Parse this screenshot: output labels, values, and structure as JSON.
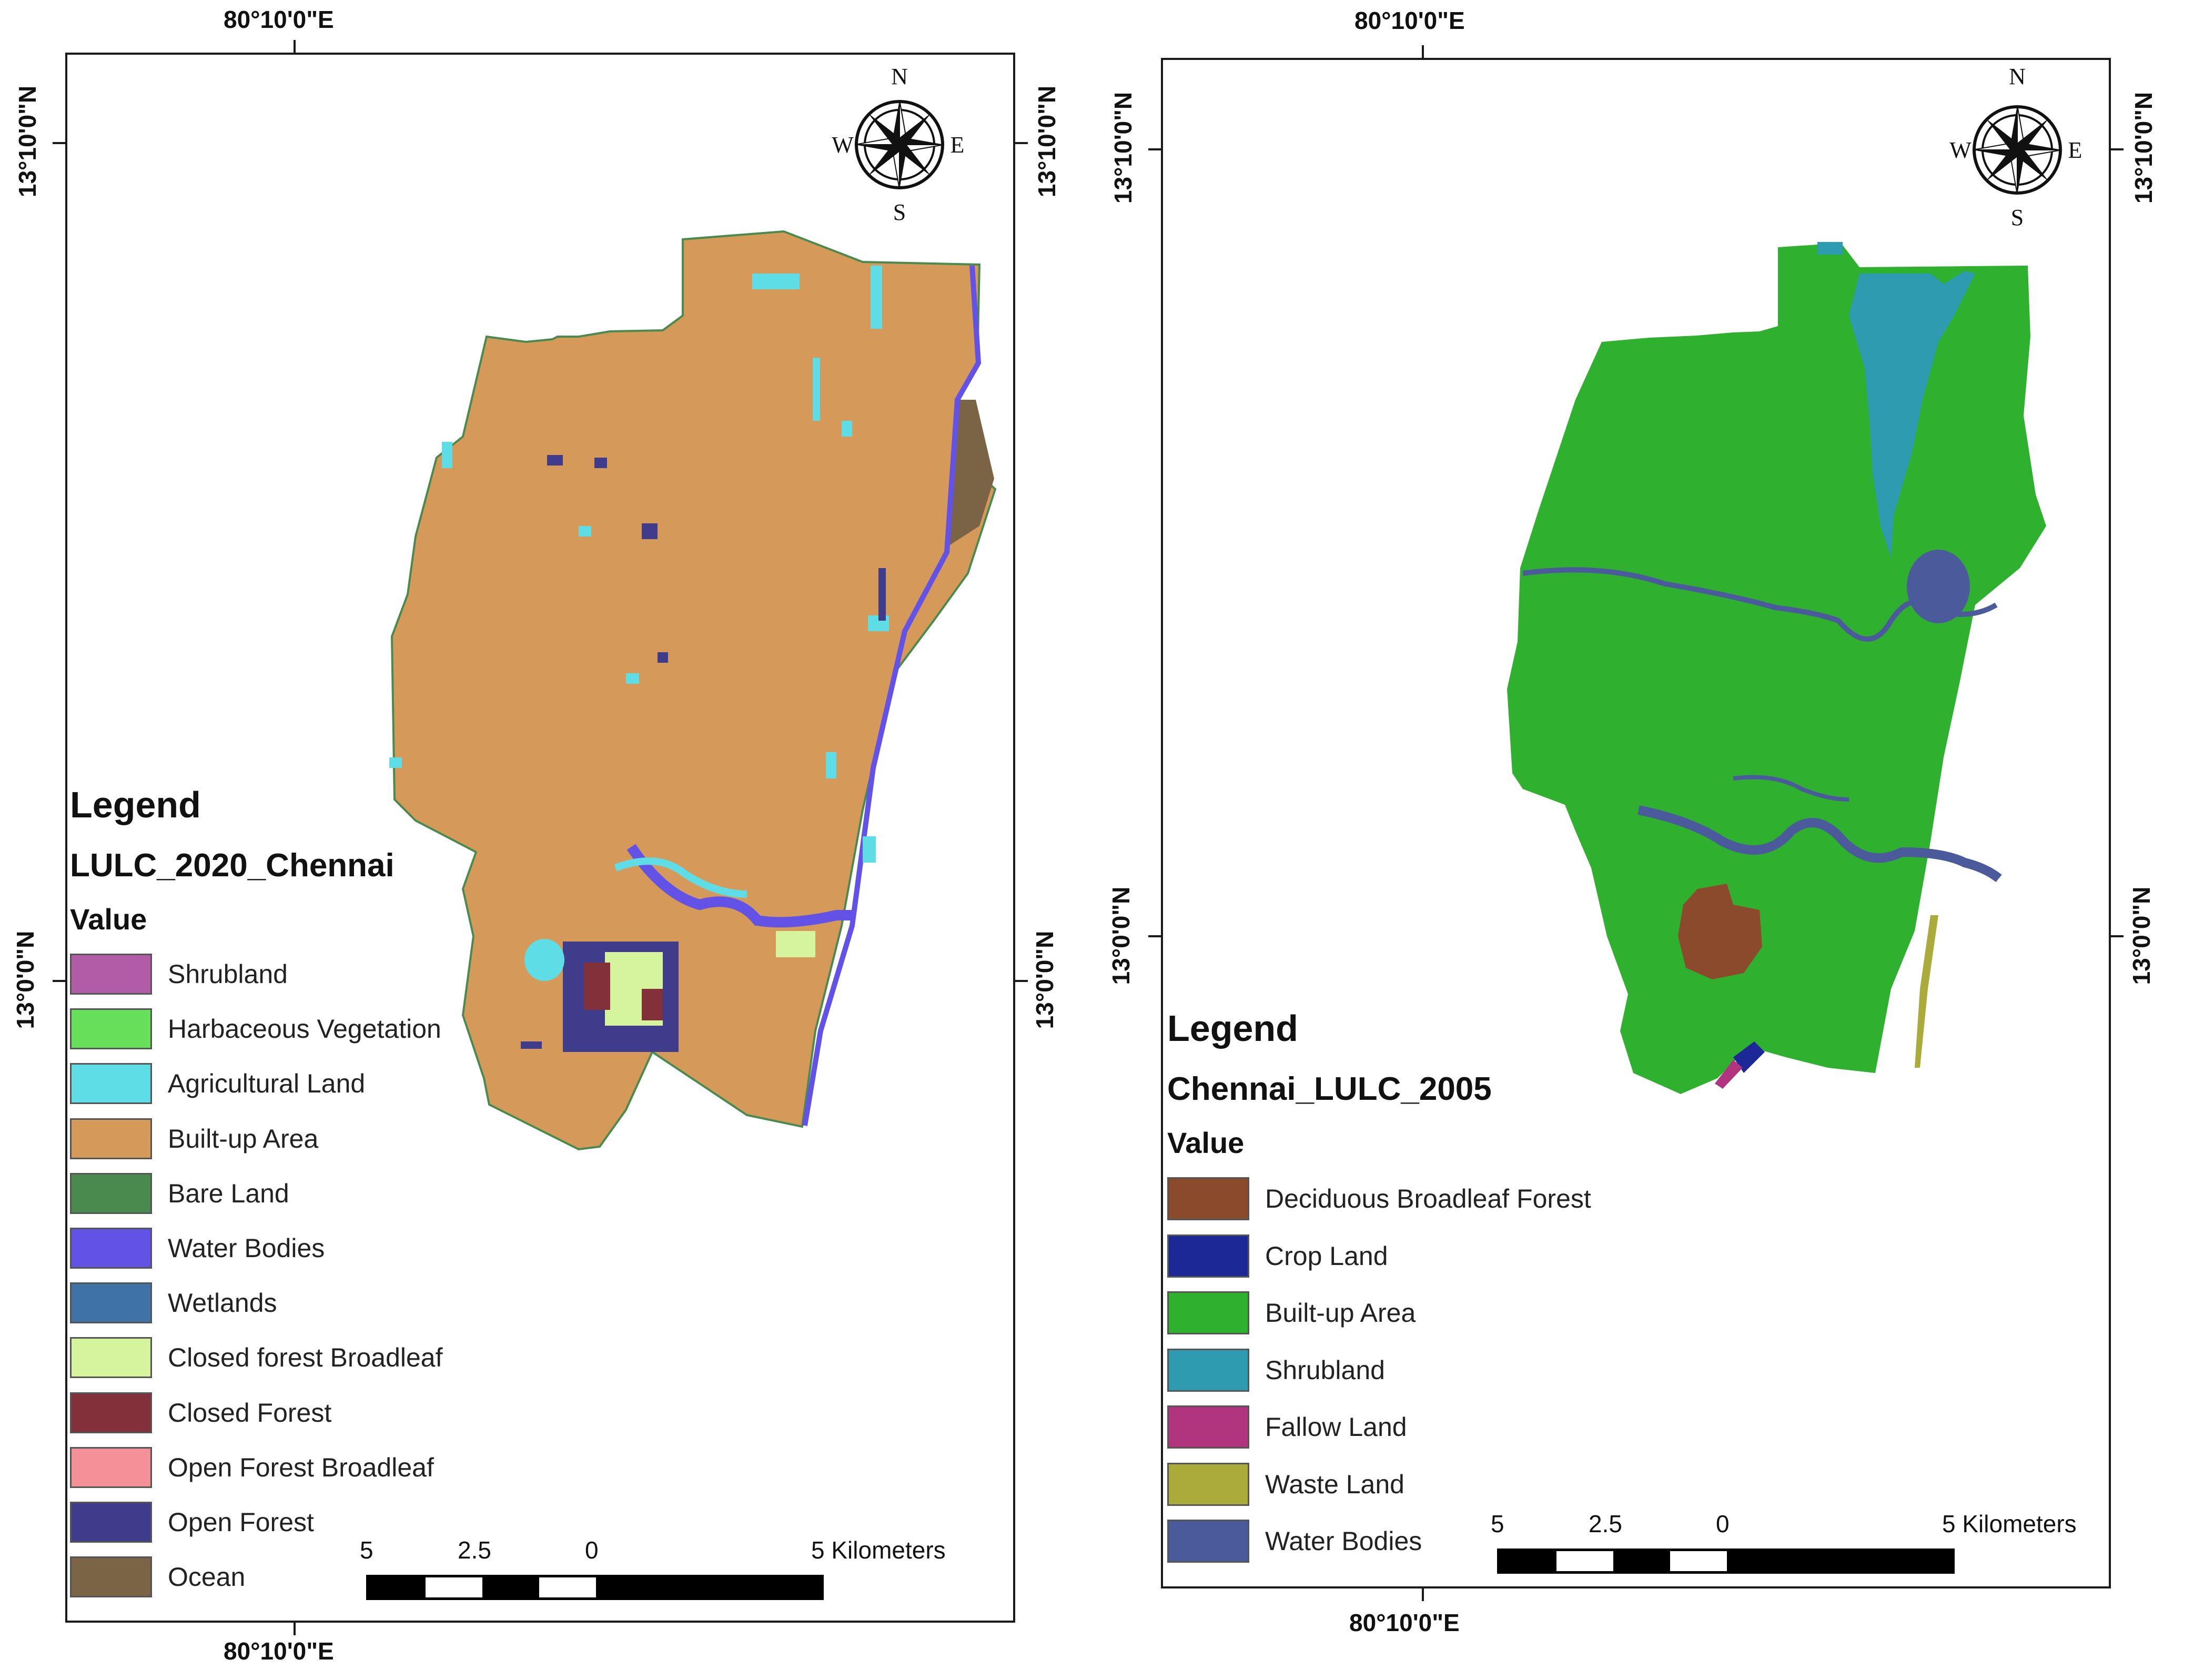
{
  "maps": [
    {
      "id": "lulc2020",
      "coords": {
        "top_lon": "80°10'0\"E",
        "bottom_lon": "80°10'0\"E",
        "left_lat_top": "13°10'0\"N",
        "left_lat_bottom": "13°0'0\"N",
        "right_lat_top": "13°10'0\"N",
        "right_lat_bottom": "13°0'0\"N"
      },
      "compass": {
        "n": "N",
        "s": "S",
        "e": "E",
        "w": "W"
      },
      "legend": {
        "title": "Legend",
        "layer": "LULC_2020_Chennai",
        "value_header": "Value",
        "items": [
          {
            "label": "Shrubland",
            "color": "#b25ca8"
          },
          {
            "label": "Harbaceous Vegetation",
            "color": "#66e05a"
          },
          {
            "label": "Agricultural Land",
            "color": "#5fdde6"
          },
          {
            "label": "Built-up Area",
            "color": "#d59a5a"
          },
          {
            "label": "Bare Land",
            "color": "#4a8a4e"
          },
          {
            "label": "Water Bodies",
            "color": "#6352e6"
          },
          {
            "label": "Wetlands",
            "color": "#3f73a8"
          },
          {
            "label": "Closed forest Broadleaf",
            "color": "#d6f39e"
          },
          {
            "label": "Closed Forest",
            "color": "#82303a"
          },
          {
            "label": "Open Forest Broadleaf",
            "color": "#f39196"
          },
          {
            "label": "Open Forest",
            "color": "#3f3c8c"
          },
          {
            "label": "Ocean",
            "color": "#7b6446"
          }
        ]
      },
      "scale": {
        "labels": [
          "5",
          "2.5",
          "0",
          "5 Kilometers"
        ]
      }
    },
    {
      "id": "lulc2005",
      "coords": {
        "top_lon": "80°10'0\"E",
        "bottom_lon": "80°10'0\"E",
        "left_lat_top": "13°10'0\"N",
        "left_lat_bottom": "13°0'0\"N",
        "right_lat_top": "13°10'0\"N",
        "right_lat_bottom": "13°0'0\"N"
      },
      "compass": {
        "n": "N",
        "s": "S",
        "e": "E",
        "w": "W"
      },
      "legend": {
        "title": "Legend",
        "layer": "Chennai_LULC_2005",
        "value_header": "Value",
        "items": [
          {
            "label": "Deciduous Broadleaf Forest",
            "color": "#8b4a2b"
          },
          {
            "label": "Crop Land",
            "color": "#1c2896"
          },
          {
            "label": "Built-up Area",
            "color": "#2fb12f"
          },
          {
            "label": "Shrubland",
            "color": "#2f9bb0"
          },
          {
            "label": "Fallow Land",
            "color": "#b0347e"
          },
          {
            "label": "Waste Land",
            "color": "#aaab3b"
          },
          {
            "label": "Water Bodies",
            "color": "#4a5a9a"
          }
        ]
      },
      "scale": {
        "labels": [
          "5",
          "2.5",
          "0",
          "5 Kilometers"
        ]
      }
    }
  ]
}
